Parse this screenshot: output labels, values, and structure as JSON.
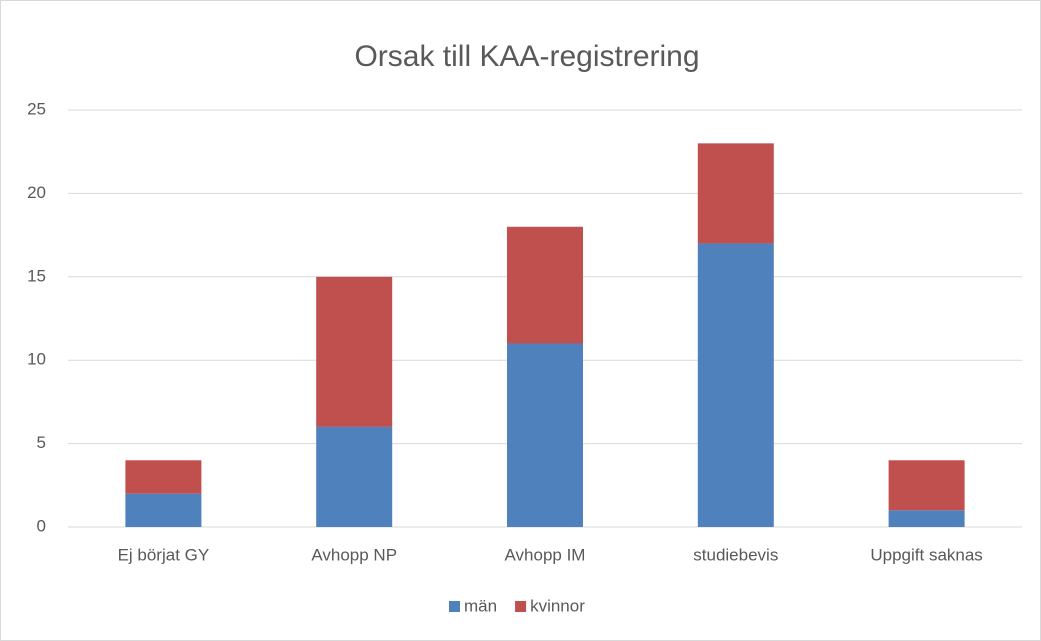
{
  "chart_data": {
    "type": "stacked_bar",
    "title": "Orsak till KAA-registrering",
    "categories": [
      "Ej börjat GY",
      "Avhopp NP",
      "Avhopp IM",
      "studiebevis",
      "Uppgift saknas"
    ],
    "series": [
      {
        "name": "män",
        "color": "#4f81bd",
        "values": [
          2,
          6,
          11,
          17,
          1
        ]
      },
      {
        "name": "kvinnor",
        "color": "#c0504d",
        "values": [
          2,
          9,
          7,
          6,
          3
        ]
      }
    ],
    "ylim": [
      0,
      25
    ],
    "yticks": [
      0,
      5,
      10,
      15,
      20,
      25
    ],
    "grid": true,
    "legend": "bottom"
  }
}
